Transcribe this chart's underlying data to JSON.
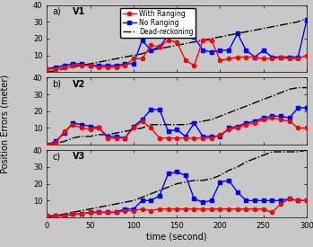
{
  "time": [
    0,
    10,
    20,
    30,
    40,
    50,
    60,
    70,
    80,
    90,
    100,
    110,
    120,
    130,
    140,
    150,
    160,
    170,
    180,
    190,
    200,
    210,
    220,
    230,
    240,
    250,
    260,
    270,
    280,
    290,
    300
  ],
  "V1_ranging": [
    2,
    2,
    3,
    4,
    4,
    4,
    3,
    3,
    3,
    4,
    8,
    8,
    16,
    15,
    19,
    18,
    7,
    4,
    19,
    19,
    7,
    8,
    9,
    9,
    9,
    8,
    8,
    9,
    8,
    8,
    10
  ],
  "V1_noranging": [
    2,
    3,
    4,
    5,
    5,
    4,
    4,
    4,
    4,
    5,
    5,
    19,
    13,
    15,
    22,
    24,
    22,
    21,
    13,
    12,
    13,
    13,
    23,
    13,
    9,
    13,
    9,
    9,
    9,
    9,
    31
  ],
  "V1_dead": [
    0,
    1,
    2,
    3,
    4,
    5,
    6,
    7,
    8,
    9,
    10,
    11,
    13,
    14,
    15,
    16,
    17,
    18,
    19,
    20,
    21,
    22,
    23,
    24,
    25,
    26,
    27,
    28,
    29,
    30,
    32
  ],
  "V2_ranging": [
    0,
    1,
    8,
    12,
    10,
    9,
    10,
    4,
    4,
    4,
    10,
    14,
    10,
    4,
    4,
    4,
    4,
    4,
    4,
    4,
    6,
    9,
    10,
    12,
    13,
    15,
    16,
    15,
    14,
    10,
    10
  ],
  "V2_noranging": [
    0,
    2,
    7,
    13,
    12,
    11,
    10,
    5,
    5,
    4,
    11,
    15,
    21,
    21,
    8,
    9,
    5,
    13,
    5,
    5,
    5,
    10,
    11,
    13,
    14,
    16,
    17,
    17,
    16,
    22,
    22
  ],
  "V2_dead": [
    0,
    1,
    2,
    4,
    5,
    5,
    6,
    6,
    7,
    8,
    9,
    10,
    12,
    12,
    12,
    12,
    12,
    13,
    14,
    15,
    17,
    19,
    21,
    23,
    25,
    27,
    29,
    31,
    33,
    34,
    34
  ],
  "V3_ranging": [
    1,
    1,
    1,
    2,
    2,
    3,
    3,
    3,
    3,
    4,
    4,
    5,
    4,
    5,
    5,
    5,
    5,
    5,
    5,
    5,
    5,
    5,
    5,
    5,
    5,
    5,
    3,
    8,
    11,
    10,
    10
  ],
  "V3_noranging": [
    1,
    1,
    1,
    2,
    2,
    3,
    3,
    3,
    3,
    5,
    5,
    10,
    10,
    13,
    26,
    27,
    25,
    11,
    9,
    10,
    21,
    22,
    15,
    10,
    10,
    10,
    10,
    10,
    11,
    10,
    10
  ],
  "V3_dead": [
    0,
    1,
    2,
    3,
    4,
    5,
    6,
    7,
    8,
    9,
    10,
    12,
    14,
    16,
    18,
    20,
    21,
    22,
    22,
    23,
    25,
    28,
    30,
    33,
    35,
    37,
    39,
    39,
    39,
    39,
    40
  ],
  "ylim": [
    0,
    40
  ],
  "yticks": [
    10,
    20,
    30,
    40
  ],
  "xlim": [
    0,
    300
  ],
  "xticks": [
    0,
    50,
    100,
    150,
    200,
    250,
    300
  ],
  "color_ranging": "#FF0000",
  "color_noranging": "#0000FF",
  "color_dead": "#000000",
  "bg_color": "#C8C8C8",
  "xlabel": "time (second)",
  "ylabel": "Position Errors (meter)",
  "legend_labels": [
    "With Ranging",
    "No Ranging",
    "Dead-reckoning"
  ],
  "panel_labels": [
    "a)",
    "b)",
    "c)"
  ],
  "vehicle_labels": [
    "V1",
    "V2",
    "V3"
  ]
}
